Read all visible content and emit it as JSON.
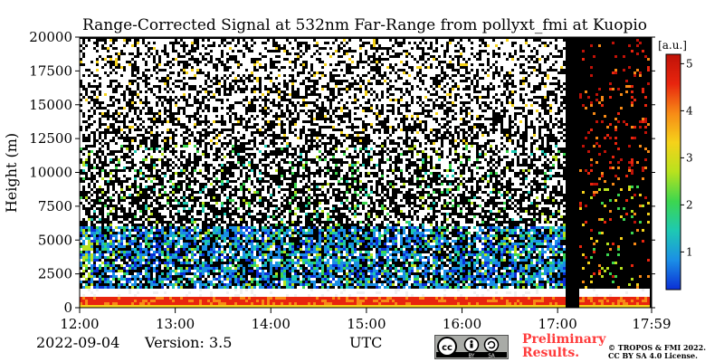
{
  "chart_data": {
    "type": "heatmap",
    "title": "Range-Corrected Signal at 532nm Far-Range from pollyxt_fmi at Kuopio",
    "xlabel": "",
    "ylabel": "Height (m)",
    "x_ticks": [
      "12:00",
      "13:00",
      "14:00",
      "15:00",
      "16:00",
      "17:00",
      "17:59"
    ],
    "x_tick_hours": [
      12.0,
      13.0,
      14.0,
      15.0,
      16.0,
      17.0,
      17.983
    ],
    "xlim": [
      12.0,
      17.983
    ],
    "y_ticks": [
      0,
      2500,
      5000,
      7500,
      10000,
      12500,
      15000,
      17500,
      20000
    ],
    "ylim": [
      0,
      20000
    ],
    "colorbar": {
      "unit": "[a.u.]",
      "ticks": [
        "1",
        "2",
        "3",
        "4",
        "5"
      ],
      "tick_values": [
        1,
        2,
        3,
        4,
        5
      ],
      "range": [
        0.2,
        5.2
      ],
      "colors": [
        "#0b2fd6",
        "#1b8fe6",
        "#1ec9b3",
        "#3cd64f",
        "#b8e21e",
        "#f5d21a",
        "#f78a16",
        "#e8250e",
        "#c01208"
      ]
    },
    "features": {
      "near_field_layer_m": [
        0,
        1400
      ],
      "no_data_gap_hours": [
        17.07,
        17.22
      ]
    }
  },
  "footer": {
    "date": "2022-09-04",
    "version": "Version: 3.5",
    "timezone": "UTC",
    "preliminary_line1": "Preliminary",
    "preliminary_line2": "Results.",
    "copyright_line1": "© TROPOS & FMI 2022.",
    "copyright_line2": "CC BY SA 4.0 License.",
    "license_badge": "cc-by-sa-badge",
    "badge_labels": [
      "BY",
      "SA"
    ]
  }
}
